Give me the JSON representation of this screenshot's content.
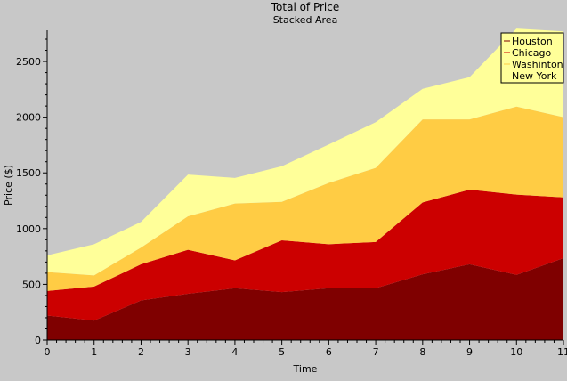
{
  "chart_data": {
    "type": "area",
    "stacked": true,
    "title": "Total of Price",
    "subtitle": "Stacked Area",
    "xlabel": "Time",
    "ylabel": "Price ($)",
    "x": [
      0,
      1,
      2,
      3,
      4,
      5,
      6,
      7,
      8,
      9,
      10,
      11
    ],
    "xlim": [
      0,
      11
    ],
    "ylim": [
      0,
      2780
    ],
    "yticks": [
      0,
      500,
      1000,
      1500,
      2000,
      2500
    ],
    "legend_position": "top-right",
    "series": [
      {
        "name": "Houston",
        "color": "#7f0000",
        "values": [
          220,
          175,
          355,
          415,
          465,
          430,
          465,
          465,
          590,
          680,
          585,
          735
        ]
      },
      {
        "name": "Chicago",
        "color": "#cc0000",
        "values": [
          220,
          305,
          325,
          395,
          250,
          465,
          395,
          415,
          645,
          670,
          720,
          545
        ]
      },
      {
        "name": "Washinton",
        "color": "#ffcc44",
        "values": [
          170,
          100,
          150,
          300,
          510,
          345,
          550,
          665,
          745,
          630,
          790,
          720
        ]
      },
      {
        "name": "New York",
        "color": "#ffff99",
        "values": [
          150,
          280,
          230,
          375,
          230,
          320,
          345,
          410,
          275,
          380,
          700,
          770
        ]
      }
    ]
  }
}
